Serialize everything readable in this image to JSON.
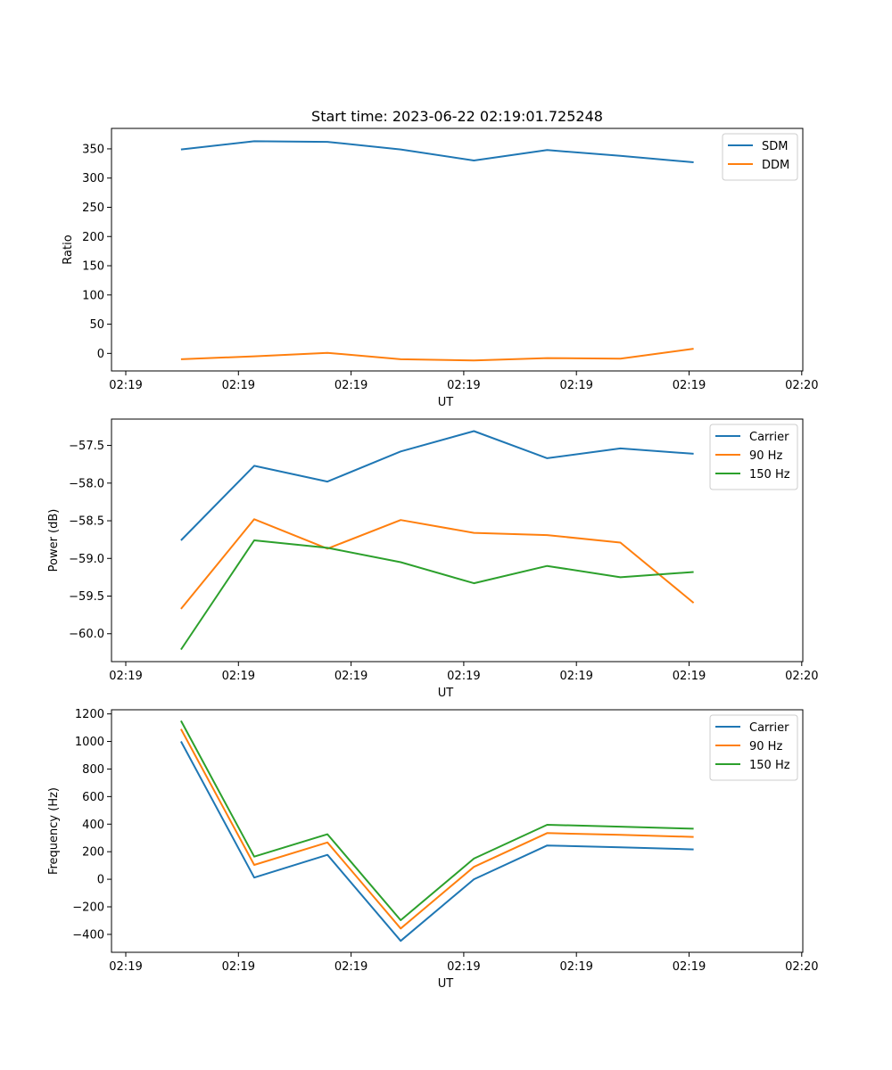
{
  "figure": {
    "title": "Start time: 2023-06-22 02:19:01.725248"
  },
  "colors": {
    "blue": "#1f77b4",
    "orange": "#ff7f0e",
    "green": "#2ca02c"
  },
  "chart_data": [
    {
      "type": "line",
      "title": "Start time: 2023-06-22 02:19:01.725248",
      "xlabel": "UT",
      "ylabel": "Ratio",
      "xlim": [
        0,
        6.0
      ],
      "ylim": [
        -30,
        385
      ],
      "xticks": [
        0,
        1,
        2,
        3,
        4,
        5,
        6
      ],
      "xtick_labels": [
        "02:19",
        "02:19",
        "02:19",
        "02:19",
        "02:19",
        "02:19",
        "02:20"
      ],
      "yticks": [
        0,
        50,
        100,
        150,
        200,
        250,
        300,
        350
      ],
      "ytick_labels": [
        "0",
        "50",
        "100",
        "150",
        "200",
        "250",
        "300",
        "350"
      ],
      "grid": false,
      "legend": "top-right",
      "x": [
        0.49,
        1.14,
        1.79,
        2.44,
        3.09,
        3.74,
        4.39,
        5.04
      ],
      "series": [
        {
          "name": "SDM",
          "color": "#1f77b4",
          "values": [
            349,
            363,
            362,
            349,
            330,
            348,
            338,
            327
          ]
        },
        {
          "name": "DDM",
          "color": "#ff7f0e",
          "values": [
            -10,
            -5,
            1,
            -10,
            -12,
            -8,
            -9,
            8
          ]
        }
      ]
    },
    {
      "type": "line",
      "xlabel": "UT",
      "ylabel": "Power (dB)",
      "xlim": [
        0,
        6.0
      ],
      "ylim": [
        -60.37,
        -57.15
      ],
      "xticks": [
        0,
        1,
        2,
        3,
        4,
        5,
        6
      ],
      "xtick_labels": [
        "02:19",
        "02:19",
        "02:19",
        "02:19",
        "02:19",
        "02:19",
        "02:20"
      ],
      "yticks": [
        -60.0,
        -59.5,
        -59.0,
        -58.5,
        -58.0,
        -57.5
      ],
      "ytick_labels": [
        "−60.0",
        "−59.5",
        "−59.0",
        "−58.5",
        "−58.0",
        "−57.5"
      ],
      "grid": false,
      "legend": "top-right",
      "x": [
        0.49,
        1.14,
        1.79,
        2.44,
        3.09,
        3.74,
        4.39,
        5.04
      ],
      "series": [
        {
          "name": "Carrier",
          "color": "#1f77b4",
          "values": [
            -58.76,
            -57.77,
            -57.98,
            -57.58,
            -57.31,
            -57.67,
            -57.54,
            -57.61
          ]
        },
        {
          "name": "90 Hz",
          "color": "#ff7f0e",
          "values": [
            -59.67,
            -58.48,
            -58.87,
            -58.49,
            -58.66,
            -58.69,
            -58.79,
            -59.59
          ]
        },
        {
          "name": "150 Hz",
          "color": "#2ca02c",
          "values": [
            -60.21,
            -58.76,
            -58.86,
            -59.05,
            -59.33,
            -59.1,
            -59.25,
            -59.18
          ]
        }
      ]
    },
    {
      "type": "line",
      "xlabel": "UT",
      "ylabel": "Frequency (Hz)",
      "xlim": [
        0,
        6.0
      ],
      "ylim": [
        -530,
        1230
      ],
      "xticks": [
        0,
        1,
        2,
        3,
        4,
        5,
        6
      ],
      "xtick_labels": [
        "02:19",
        "02:19",
        "02:19",
        "02:19",
        "02:19",
        "02:19",
        "02:20"
      ],
      "yticks": [
        -400,
        -200,
        0,
        200,
        400,
        600,
        800,
        1000,
        1200
      ],
      "ytick_labels": [
        "−400",
        "−200",
        "0",
        "200",
        "400",
        "600",
        "800",
        "1000",
        "1200"
      ],
      "grid": false,
      "legend": "top-right",
      "x": [
        0.49,
        1.14,
        1.79,
        2.44,
        3.09,
        3.74,
        4.39,
        5.04
      ],
      "series": [
        {
          "name": "Carrier",
          "color": "#1f77b4",
          "values": [
            1000,
            12,
            177,
            -447,
            0,
            245,
            232,
            217
          ]
        },
        {
          "name": "90 Hz",
          "color": "#ff7f0e",
          "values": [
            1090,
            104,
            267,
            -357,
            90,
            335,
            322,
            307
          ]
        },
        {
          "name": "150 Hz",
          "color": "#2ca02c",
          "values": [
            1150,
            164,
            327,
            -297,
            150,
            395,
            382,
            367
          ]
        }
      ]
    }
  ]
}
